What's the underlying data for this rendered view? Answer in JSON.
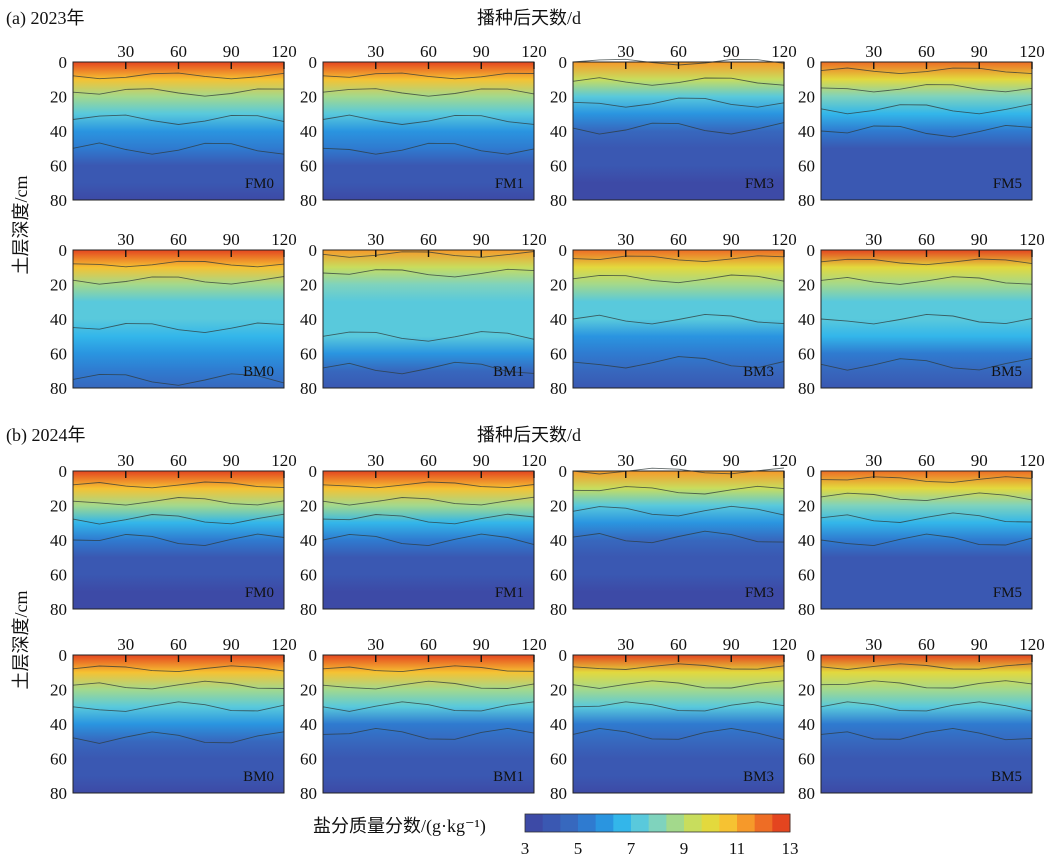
{
  "sections": [
    {
      "label": "(a) 2023年",
      "xaxis_title": "播种后天数/d",
      "ylabel": "土层深度/cm"
    },
    {
      "label": "(b) 2024年",
      "xaxis_title": "播种后天数/d",
      "ylabel": "土层深度/cm"
    }
  ],
  "colorbar": {
    "title": "盐分质量分数/(g·kg⁻¹)",
    "ticks": [
      "3",
      "5",
      "7",
      "9",
      "11",
      "13"
    ],
    "colors": [
      "#3d4aa6",
      "#3a58b2",
      "#3768be",
      "#2f7bd0",
      "#2a95e0",
      "#33b6ea",
      "#59c9dc",
      "#7fd3bd",
      "#a3d98c",
      "#c8dd5d",
      "#e3d93d",
      "#f6c232",
      "#f6992a",
      "#ee6d25",
      "#e4451f"
    ]
  },
  "colors": {
    "deep": "#3c4aa5",
    "surface": "#f08a2a"
  },
  "chart_data": {
    "type": "heatmap",
    "x": {
      "label": "播种后天数/d",
      "ticks": [
        30,
        60,
        90,
        120
      ],
      "range": [
        0,
        120
      ]
    },
    "y": {
      "label": "土层深度/cm",
      "ticks": [
        0,
        20,
        40,
        60,
        80
      ],
      "range": [
        0,
        80
      ],
      "reversed": true
    },
    "z": {
      "label": "盐分质量分数/(g·kg⁻¹)",
      "range": [
        3,
        13
      ]
    },
    "panels": [
      {
        "year": "2023",
        "name": "FM0",
        "depth_profile": [
          13,
          10.5,
          8.5,
          7.5,
          6,
          5,
          4.3,
          3.8,
          3.4
        ]
      },
      {
        "year": "2023",
        "name": "FM1",
        "depth_profile": [
          13,
          10.5,
          8.5,
          7.5,
          6,
          5,
          4.3,
          3.8,
          3.4
        ]
      },
      {
        "year": "2023",
        "name": "FM3",
        "depth_profile": [
          11,
          9.2,
          7.5,
          6,
          4.8,
          4.2,
          3.8,
          3.6,
          3.5
        ]
      },
      {
        "year": "2023",
        "name": "FM5",
        "depth_profile": [
          12,
          10,
          8,
          6.6,
          5,
          4.3,
          4,
          3.8,
          3.7
        ]
      },
      {
        "year": "2023",
        "name": "BM0",
        "depth_profile": [
          13,
          10.5,
          8.5,
          7.6,
          7.2,
          6.8,
          6.3,
          5.4,
          4.6
        ]
      },
      {
        "year": "2023",
        "name": "BM1",
        "depth_profile": [
          11.5,
          9.5,
          8,
          7.6,
          7.3,
          7,
          6,
          4.8,
          4.2
        ]
      },
      {
        "year": "2023",
        "name": "BM3",
        "depth_profile": [
          12,
          10,
          8.5,
          7.5,
          7,
          6.3,
          5.4,
          4.6,
          4.1
        ]
      },
      {
        "year": "2023",
        "name": "BM5",
        "depth_profile": [
          12.5,
          10.3,
          8.6,
          7.6,
          7,
          6.4,
          5.5,
          4.7,
          4.2
        ]
      },
      {
        "year": "2024",
        "name": "FM0",
        "depth_profile": [
          13,
          10.5,
          8.5,
          6.6,
          5,
          4.3,
          3.9,
          3.6,
          3.4
        ]
      },
      {
        "year": "2024",
        "name": "FM1",
        "depth_profile": [
          13,
          10.5,
          8.5,
          6.6,
          5,
          4.3,
          3.9,
          3.6,
          3.4
        ]
      },
      {
        "year": "2024",
        "name": "FM3",
        "depth_profile": [
          11,
          9.2,
          7.5,
          6,
          4.8,
          4.2,
          3.8,
          3.6,
          3.5
        ]
      },
      {
        "year": "2024",
        "name": "FM5",
        "depth_profile": [
          12,
          10,
          8,
          6.6,
          5,
          4.3,
          4,
          3.8,
          3.7
        ]
      },
      {
        "year": "2024",
        "name": "BM0",
        "depth_profile": [
          13,
          10.5,
          8.5,
          7,
          5.8,
          4.8,
          4.2,
          3.8,
          3.5
        ]
      },
      {
        "year": "2024",
        "name": "BM1",
        "depth_profile": [
          13,
          10.5,
          8.5,
          7,
          5.6,
          4.6,
          4,
          3.7,
          3.5
        ]
      },
      {
        "year": "2024",
        "name": "BM3",
        "depth_profile": [
          12.5,
          10.3,
          8.5,
          7,
          5.6,
          4.6,
          4,
          3.7,
          3.5
        ]
      },
      {
        "year": "2024",
        "name": "BM5",
        "depth_profile": [
          12.5,
          10.3,
          8.5,
          7,
          5.6,
          4.6,
          4,
          3.7,
          3.5
        ]
      }
    ]
  }
}
